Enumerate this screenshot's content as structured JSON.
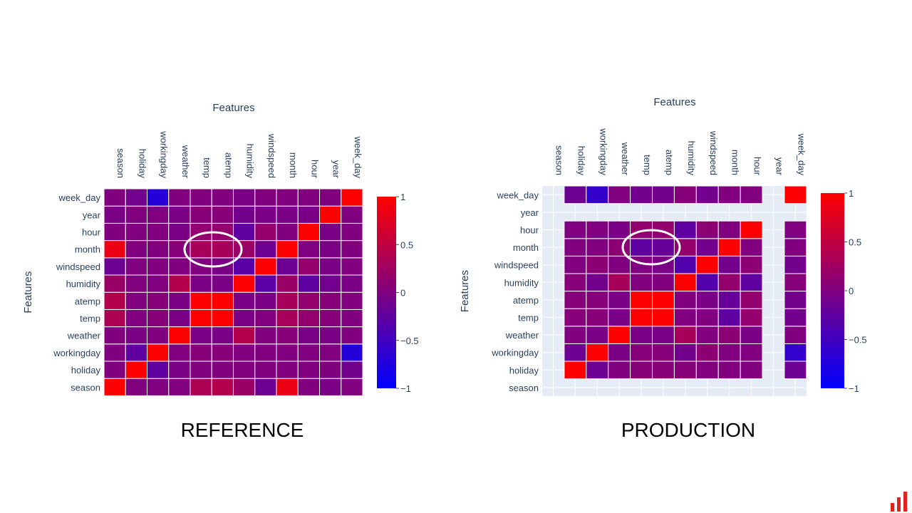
{
  "captions": {
    "left": "REFERENCE",
    "right": "PRODUCTION"
  },
  "logo_icon": "bar-chart-logo-icon",
  "colors": {
    "scale_low": "#0000ff",
    "scale_mid": "#800080",
    "scale_high": "#ff0000",
    "plot_bg": "#e5ecf6",
    "grid": "#ffffff",
    "logo": "#e5211d",
    "annotation": "#ffffff"
  },
  "chart_data": [
    {
      "type": "heatmap",
      "title": "REFERENCE",
      "xlabel": "Features",
      "ylabel": "Features",
      "x": [
        "season",
        "holiday",
        "workingday",
        "weather",
        "temp",
        "atemp",
        "humidity",
        "windspeed",
        "month",
        "hour",
        "year",
        "week_day"
      ],
      "y": [
        "season",
        "holiday",
        "workingday",
        "weather",
        "temp",
        "atemp",
        "humidity",
        "windspeed",
        "month",
        "hour",
        "year",
        "week_day"
      ],
      "zmin": -1,
      "zmax": 1,
      "colorbar_ticks": [
        "1",
        "0.5",
        "0",
        "−0.5",
        "−1"
      ],
      "annotation": "ellipse around month × temp/atemp",
      "z": [
        [
          1.0,
          0.0,
          0.0,
          0.0,
          0.35,
          0.4,
          0.2,
          -0.15,
          0.85,
          0.0,
          -0.05,
          0.0
        ],
        [
          0.0,
          1.0,
          -0.25,
          -0.05,
          0.0,
          0.0,
          0.0,
          0.0,
          0.0,
          0.0,
          0.0,
          -0.1
        ],
        [
          0.0,
          -0.25,
          1.0,
          0.0,
          0.05,
          0.05,
          0.0,
          0.0,
          0.0,
          0.0,
          0.0,
          -0.7
        ],
        [
          0.0,
          -0.05,
          0.0,
          1.0,
          -0.05,
          -0.05,
          0.4,
          0.0,
          0.05,
          -0.05,
          -0.05,
          0.0
        ],
        [
          0.35,
          0.0,
          0.05,
          -0.05,
          1.0,
          0.99,
          -0.05,
          0.0,
          0.3,
          0.15,
          0.05,
          0.0
        ],
        [
          0.4,
          0.0,
          0.05,
          -0.05,
          0.99,
          1.0,
          -0.05,
          -0.05,
          0.3,
          0.15,
          0.05,
          0.0
        ],
        [
          0.2,
          0.0,
          0.0,
          0.4,
          -0.05,
          -0.05,
          1.0,
          -0.3,
          0.2,
          -0.25,
          -0.1,
          -0.05
        ],
        [
          -0.15,
          0.0,
          0.0,
          0.0,
          0.0,
          -0.05,
          -0.3,
          1.0,
          -0.15,
          0.15,
          -0.05,
          0.0
        ],
        [
          0.85,
          0.0,
          0.0,
          0.05,
          0.3,
          0.3,
          0.2,
          -0.15,
          1.0,
          0.0,
          -0.05,
          0.0
        ],
        [
          0.0,
          0.0,
          0.0,
          -0.05,
          0.15,
          0.15,
          -0.25,
          0.15,
          0.0,
          1.0,
          -0.05,
          0.0
        ],
        [
          -0.05,
          0.0,
          0.0,
          -0.05,
          0.05,
          0.05,
          -0.1,
          -0.05,
          -0.05,
          -0.05,
          1.0,
          0.0
        ],
        [
          0.0,
          -0.1,
          -0.7,
          0.0,
          0.0,
          0.0,
          -0.05,
          0.0,
          0.0,
          0.0,
          0.0,
          1.0
        ]
      ]
    },
    {
      "type": "heatmap",
      "title": "PRODUCTION",
      "xlabel": "Features",
      "ylabel": "Features",
      "x": [
        "season",
        "holiday",
        "workingday",
        "weather",
        "temp",
        "atemp",
        "humidity",
        "windspeed",
        "month",
        "hour",
        "year",
        "week_day"
      ],
      "y": [
        "season",
        "holiday",
        "workingday",
        "weather",
        "temp",
        "atemp",
        "humidity",
        "windspeed",
        "month",
        "hour",
        "year",
        "week_day"
      ],
      "zmin": -1,
      "zmax": 1,
      "colorbar_ticks": [
        "1",
        "0.5",
        "0",
        "−0.5",
        "−1"
      ],
      "annotation": "ellipse around month × temp/atemp",
      "z": [
        [
          null,
          null,
          null,
          null,
          null,
          null,
          null,
          null,
          null,
          null,
          null,
          null
        ],
        [
          null,
          1.0,
          -0.15,
          0.0,
          0.05,
          0.05,
          0.05,
          0.0,
          0.0,
          0.0,
          null,
          -0.15
        ],
        [
          null,
          -0.15,
          1.0,
          -0.05,
          0.05,
          0.05,
          -0.1,
          0.1,
          0.0,
          0.0,
          null,
          -0.6
        ],
        [
          null,
          0.0,
          -0.05,
          1.0,
          -0.05,
          -0.05,
          0.3,
          0.0,
          0.1,
          -0.05,
          null,
          0.0
        ],
        [
          null,
          0.05,
          0.05,
          -0.05,
          1.0,
          0.99,
          0.0,
          0.0,
          -0.25,
          0.15,
          null,
          -0.1
        ],
        [
          null,
          0.05,
          0.05,
          -0.05,
          0.99,
          1.0,
          0.0,
          -0.05,
          -0.2,
          0.15,
          null,
          -0.1
        ],
        [
          null,
          0.05,
          -0.1,
          0.3,
          0.0,
          0.0,
          1.0,
          -0.35,
          0.15,
          -0.25,
          null,
          0.05
        ],
        [
          null,
          0.0,
          0.1,
          0.0,
          0.0,
          -0.05,
          -0.35,
          1.0,
          -0.1,
          0.1,
          null,
          -0.1
        ],
        [
          null,
          0.0,
          0.0,
          0.1,
          -0.25,
          -0.2,
          0.15,
          -0.1,
          1.0,
          0.0,
          null,
          0.0
        ],
        [
          null,
          0.0,
          0.0,
          -0.05,
          0.15,
          0.15,
          -0.25,
          0.1,
          0.0,
          1.0,
          null,
          0.0
        ],
        [
          null,
          null,
          null,
          null,
          null,
          null,
          null,
          null,
          null,
          null,
          null,
          null
        ],
        [
          null,
          -0.15,
          -0.6,
          0.0,
          -0.1,
          -0.1,
          0.05,
          -0.1,
          0.0,
          0.0,
          null,
          1.0
        ]
      ]
    }
  ]
}
